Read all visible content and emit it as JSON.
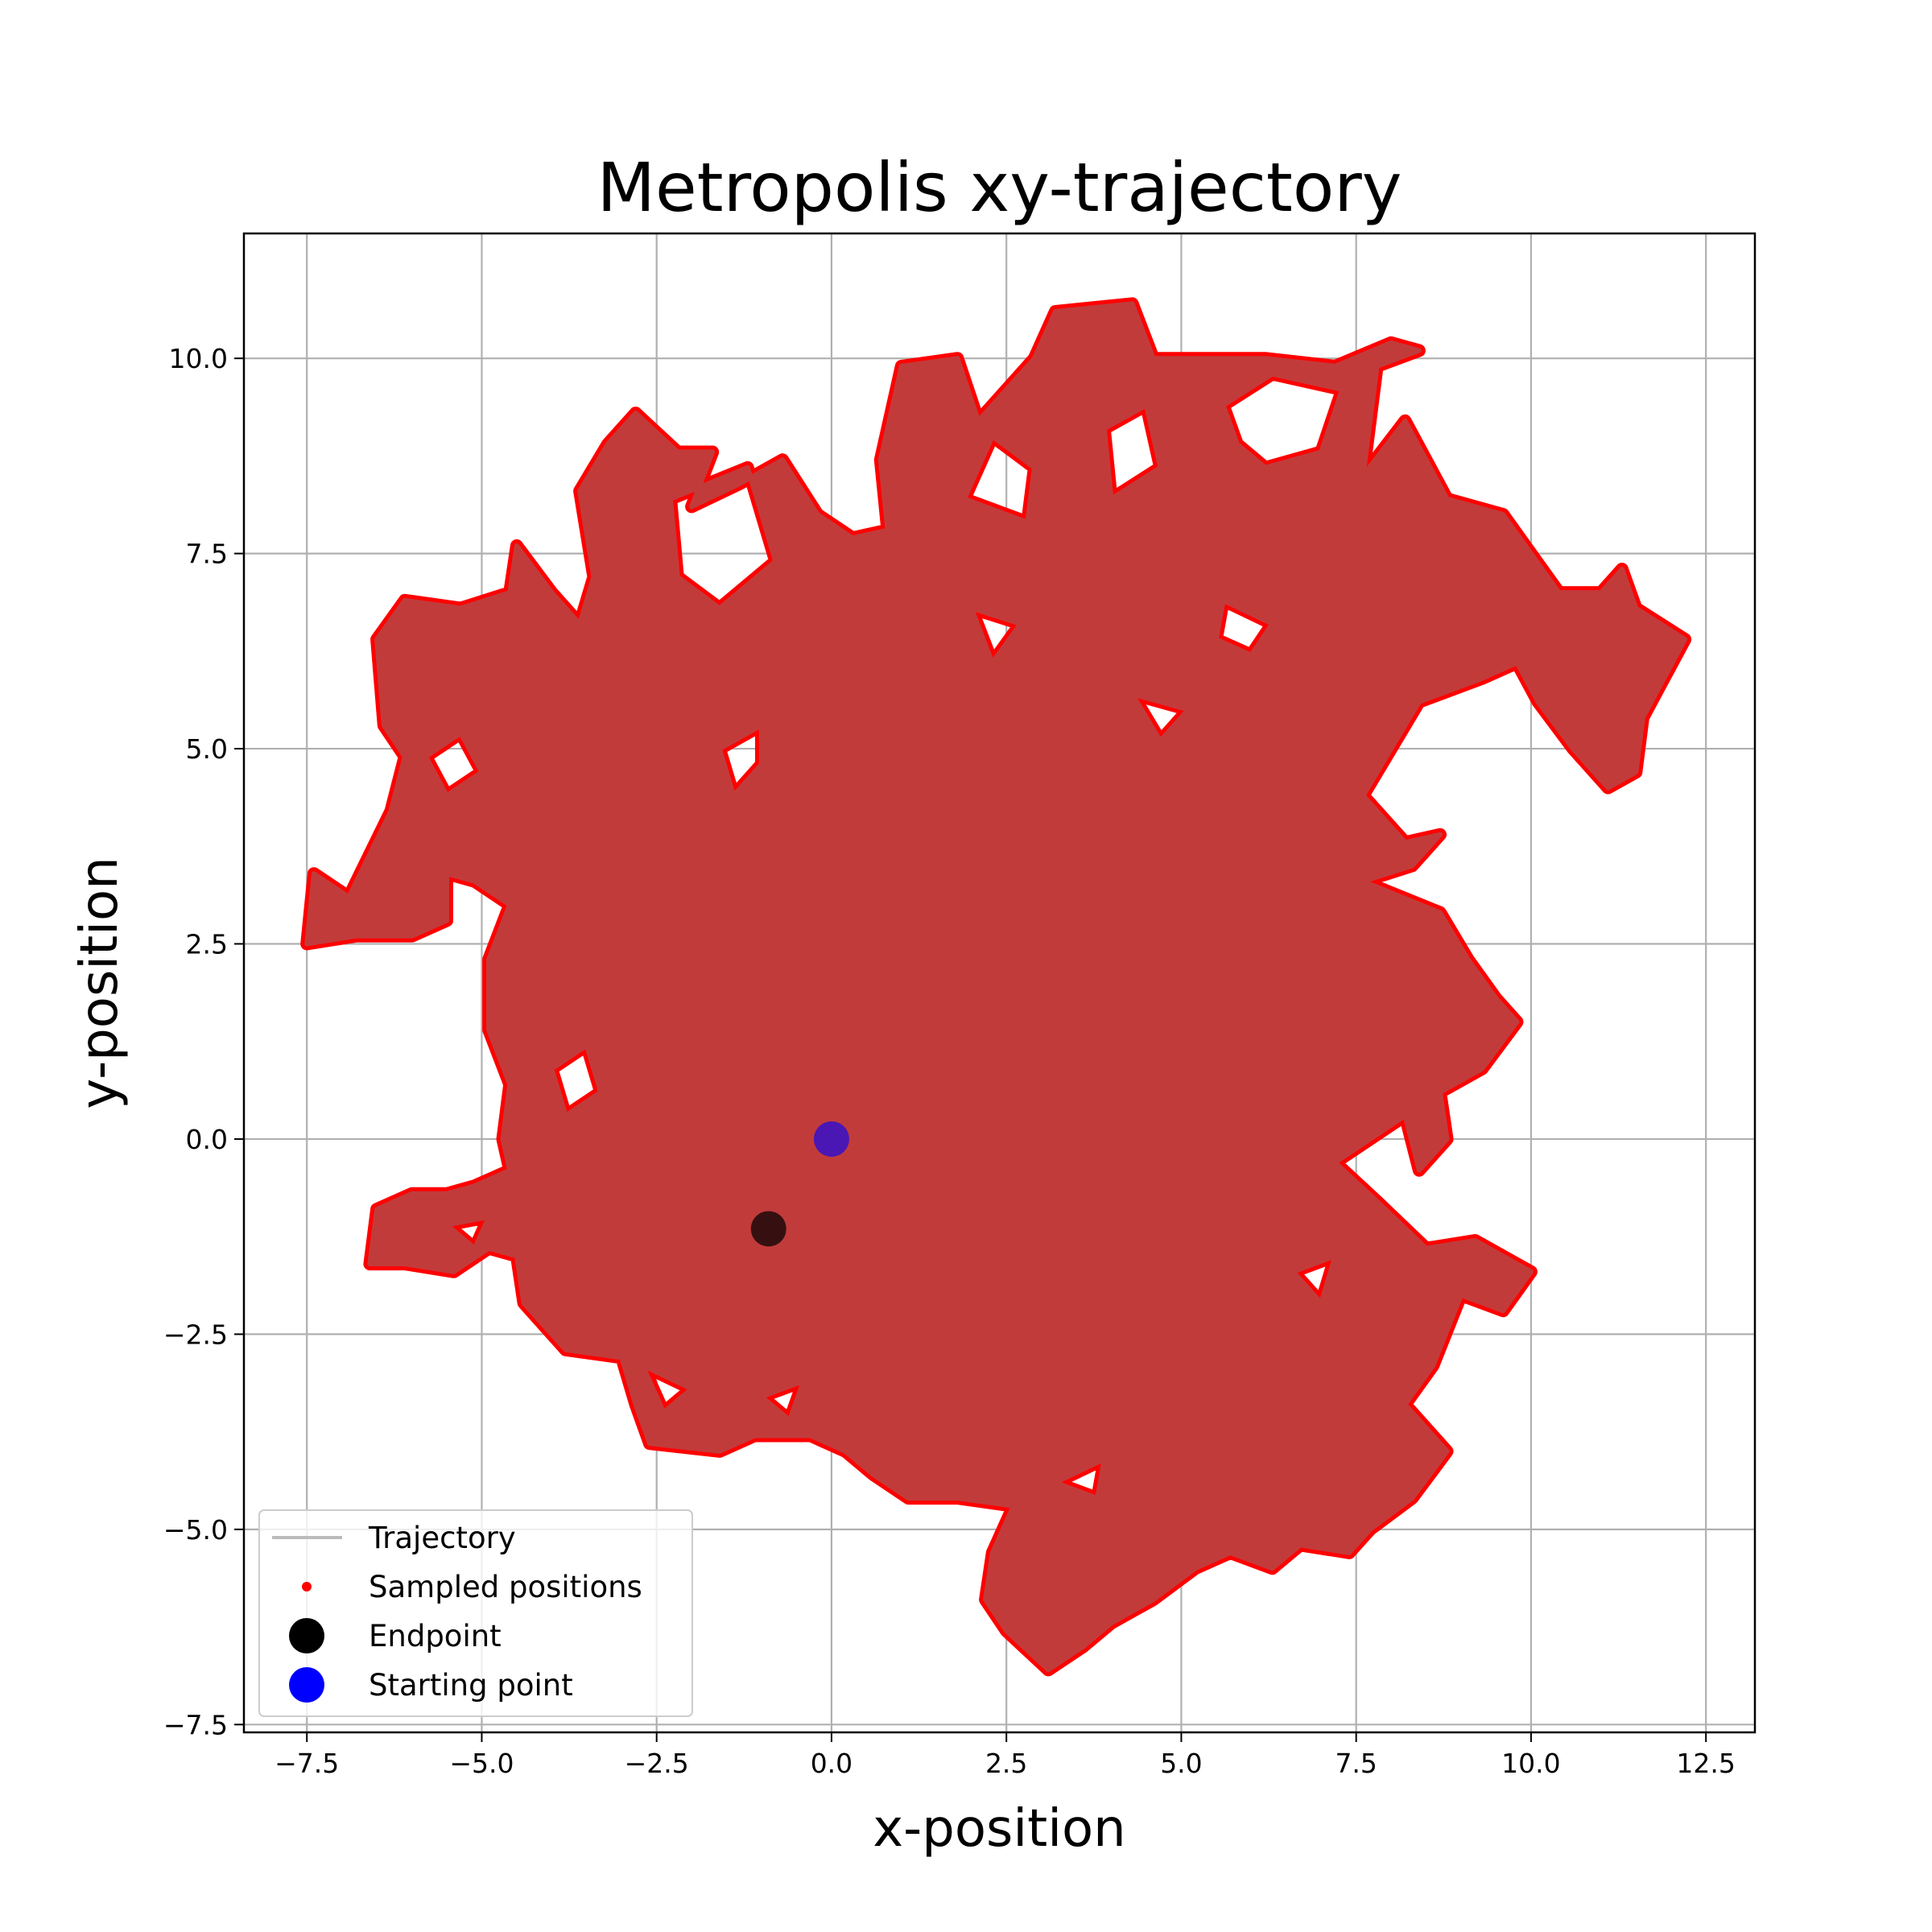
{
  "chart_data": {
    "type": "scatter",
    "title": "Metropolis xy-trajectory",
    "xlabel": "x-position",
    "ylabel": "y-position",
    "xlim": [
      -8.4,
      13.2
    ],
    "ylim": [
      -7.6,
      11.6
    ],
    "xticks": [
      -7.5,
      -5.0,
      -2.5,
      0.0,
      2.5,
      5.0,
      7.5,
      10.0,
      12.5
    ],
    "yticks": [
      -7.5,
      -5.0,
      -2.5,
      0.0,
      2.5,
      5.0,
      7.5,
      10.0
    ],
    "xtick_labels": [
      "−7.5",
      "−5.0",
      "−2.5",
      "0.0",
      "2.5",
      "5.0",
      "7.5",
      "10.0",
      "12.5"
    ],
    "ytick_labels": [
      "−7.5",
      "−5.0",
      "−2.5",
      "0.0",
      "2.5",
      "5.0",
      "7.5",
      "10.0"
    ],
    "grid": true,
    "legend_position": "lower-left",
    "colors": {
      "trajectory": "#bbbbbb",
      "samples": "#ff0000",
      "fill": "#c23b3b",
      "endpoint": "#000000",
      "start": "#0000ff",
      "grid": "#b0b0b0"
    },
    "series": [
      {
        "name": "Trajectory",
        "kind": "line",
        "outline": [
          [
            -7.5,
            2.5
          ],
          [
            -7.4,
            3.4
          ],
          [
            -6.9,
            3.1
          ],
          [
            -6.3,
            4.2
          ],
          [
            -6.1,
            4.9
          ],
          [
            -6.4,
            5.3
          ],
          [
            -6.5,
            6.4
          ],
          [
            -6.1,
            6.9
          ],
          [
            -5.3,
            6.8
          ],
          [
            -4.6,
            7.0
          ],
          [
            -4.5,
            7.6
          ],
          [
            -4.0,
            7.0
          ],
          [
            -3.6,
            6.6
          ],
          [
            -3.4,
            7.2
          ],
          [
            -3.6,
            8.3
          ],
          [
            -3.2,
            8.9
          ],
          [
            -2.8,
            9.3
          ],
          [
            -2.2,
            8.8
          ],
          [
            -1.7,
            8.8
          ],
          [
            -2.0,
            8.1
          ],
          [
            -1.3,
            8.4
          ],
          [
            -0.7,
            8.7
          ],
          [
            -0.2,
            8.0
          ],
          [
            0.3,
            7.7
          ],
          [
            0.8,
            7.8
          ],
          [
            0.7,
            8.7
          ],
          [
            1.0,
            9.9
          ],
          [
            1.8,
            10.0
          ],
          [
            2.1,
            9.2
          ],
          [
            2.9,
            10.0
          ],
          [
            3.2,
            10.6
          ],
          [
            4.3,
            10.7
          ],
          [
            4.6,
            10.0
          ],
          [
            5.3,
            10.0
          ],
          [
            6.2,
            10.0
          ],
          [
            7.2,
            9.9
          ],
          [
            8.0,
            10.2
          ],
          [
            8.4,
            10.1
          ],
          [
            7.8,
            9.9
          ],
          [
            7.6,
            8.5
          ],
          [
            8.2,
            9.2
          ],
          [
            8.8,
            8.2
          ],
          [
            9.6,
            8.0
          ],
          [
            10.0,
            7.5
          ],
          [
            10.4,
            7.0
          ],
          [
            11.0,
            7.0
          ],
          [
            11.3,
            7.3
          ],
          [
            11.5,
            6.8
          ],
          [
            12.2,
            6.4
          ],
          [
            11.9,
            5.9
          ],
          [
            11.6,
            5.4
          ],
          [
            11.5,
            4.7
          ],
          [
            11.1,
            4.5
          ],
          [
            10.6,
            5.0
          ],
          [
            10.1,
            5.6
          ],
          [
            9.8,
            6.1
          ],
          [
            9.3,
            5.9
          ],
          [
            8.4,
            5.6
          ],
          [
            8.0,
            5.0
          ],
          [
            7.6,
            4.4
          ],
          [
            8.2,
            3.8
          ],
          [
            8.7,
            3.9
          ],
          [
            8.3,
            3.5
          ],
          [
            7.6,
            3.3
          ],
          [
            8.7,
            2.9
          ],
          [
            9.1,
            2.3
          ],
          [
            9.5,
            1.8
          ],
          [
            9.8,
            1.5
          ],
          [
            9.3,
            0.9
          ],
          [
            8.7,
            0.6
          ],
          [
            8.8,
            0.0
          ],
          [
            8.4,
            -0.4
          ],
          [
            8.2,
            0.3
          ],
          [
            7.7,
            0.0
          ],
          [
            7.2,
            -0.3
          ],
          [
            7.8,
            -0.8
          ],
          [
            8.5,
            -1.4
          ],
          [
            9.2,
            -1.3
          ],
          [
            10.0,
            -1.7
          ],
          [
            9.6,
            -2.2
          ],
          [
            9.0,
            -2.0
          ],
          [
            8.6,
            -2.9
          ],
          [
            8.2,
            -3.4
          ],
          [
            8.8,
            -4.0
          ],
          [
            8.3,
            -4.6
          ],
          [
            7.7,
            -5.0
          ],
          [
            7.4,
            -5.3
          ],
          [
            6.7,
            -5.2
          ],
          [
            6.3,
            -5.5
          ],
          [
            5.7,
            -5.3
          ],
          [
            5.2,
            -5.5
          ],
          [
            4.6,
            -5.9
          ],
          [
            4.0,
            -6.2
          ],
          [
            3.6,
            -6.5
          ],
          [
            3.1,
            -6.8
          ],
          [
            2.5,
            -6.3
          ],
          [
            2.2,
            -5.9
          ],
          [
            2.3,
            -5.3
          ],
          [
            2.6,
            -4.7
          ],
          [
            1.8,
            -4.6
          ],
          [
            1.1,
            -4.6
          ],
          [
            0.6,
            -4.3
          ],
          [
            0.2,
            -4.0
          ],
          [
            -0.3,
            -3.8
          ],
          [
            -1.1,
            -3.8
          ],
          [
            -1.6,
            -4.0
          ],
          [
            -2.6,
            -3.9
          ],
          [
            -2.8,
            -3.4
          ],
          [
            -3.0,
            -2.8
          ],
          [
            -3.8,
            -2.7
          ],
          [
            -4.4,
            -2.1
          ],
          [
            -4.5,
            -1.5
          ],
          [
            -4.9,
            -1.4
          ],
          [
            -5.4,
            -1.7
          ],
          [
            -6.1,
            -1.6
          ],
          [
            -6.6,
            -1.6
          ],
          [
            -6.5,
            -0.9
          ],
          [
            -6.0,
            -0.7
          ],
          [
            -5.5,
            -0.7
          ],
          [
            -5.1,
            -0.6
          ],
          [
            -4.6,
            -0.4
          ],
          [
            -4.7,
            0.0
          ],
          [
            -4.6,
            0.7
          ],
          [
            -4.9,
            1.4
          ],
          [
            -4.9,
            2.3
          ],
          [
            -4.6,
            3.0
          ],
          [
            -5.1,
            3.3
          ],
          [
            -5.5,
            3.4
          ],
          [
            -5.5,
            2.8
          ],
          [
            -6.0,
            2.6
          ],
          [
            -6.8,
            2.6
          ]
        ]
      },
      {
        "name": "Sampled positions",
        "kind": "scatter",
        "note": "dense samples along the trajectory envelope"
      },
      {
        "name": "Endpoint",
        "kind": "marker",
        "points": [
          [
            -0.9,
            -1.15
          ]
        ]
      },
      {
        "name": "Starting point",
        "kind": "marker",
        "points": [
          [
            0.0,
            0.0
          ]
        ]
      }
    ],
    "holes": [
      [
        [
          -2.3,
          8.2
        ],
        [
          -1.2,
          8.6
        ],
        [
          -0.8,
          7.4
        ],
        [
          -1.6,
          6.8
        ],
        [
          -2.2,
          7.2
        ]
      ],
      [
        [
          2.3,
          9.0
        ],
        [
          1.9,
          8.2
        ],
        [
          2.8,
          7.9
        ],
        [
          2.9,
          8.6
        ]
      ],
      [
        [
          3.9,
          9.1
        ],
        [
          4.5,
          9.4
        ],
        [
          4.7,
          8.6
        ],
        [
          4.0,
          8.2
        ]
      ],
      [
        [
          5.6,
          9.4
        ],
        [
          6.3,
          9.8
        ],
        [
          7.3,
          9.6
        ],
        [
          7.0,
          8.8
        ],
        [
          6.2,
          8.6
        ],
        [
          5.8,
          8.9
        ]
      ],
      [
        [
          2.0,
          6.8
        ],
        [
          2.7,
          6.6
        ],
        [
          2.3,
          6.1
        ]
      ],
      [
        [
          4.3,
          5.7
        ],
        [
          5.1,
          5.5
        ],
        [
          4.7,
          5.1
        ]
      ],
      [
        [
          5.6,
          6.9
        ],
        [
          6.3,
          6.6
        ],
        [
          6.0,
          6.2
        ],
        [
          5.5,
          6.4
        ]
      ],
      [
        [
          -1.6,
          5.0
        ],
        [
          -1.0,
          5.3
        ],
        [
          -1.0,
          4.8
        ],
        [
          -1.4,
          4.4
        ]
      ],
      [
        [
          -5.8,
          4.9
        ],
        [
          -5.3,
          5.2
        ],
        [
          -5.0,
          4.7
        ],
        [
          -5.5,
          4.4
        ]
      ],
      [
        [
          -4.0,
          0.9
        ],
        [
          -3.5,
          1.2
        ],
        [
          -3.3,
          0.6
        ],
        [
          -3.8,
          0.3
        ]
      ],
      [
        [
          -2.7,
          -2.9
        ],
        [
          -2.0,
          -3.2
        ],
        [
          -2.4,
          -3.5
        ]
      ],
      [
        [
          -1.0,
          -3.3
        ],
        [
          -0.4,
          -3.1
        ],
        [
          -0.6,
          -3.6
        ]
      ],
      [
        [
          3.2,
          -4.4
        ],
        [
          3.9,
          -4.1
        ],
        [
          3.8,
          -4.6
        ]
      ],
      [
        [
          6.6,
          -1.7
        ],
        [
          7.2,
          -1.5
        ],
        [
          7.0,
          -2.1
        ]
      ],
      [
        [
          -5.5,
          -1.1
        ],
        [
          -4.9,
          -1.0
        ],
        [
          -5.1,
          -1.4
        ]
      ]
    ]
  },
  "legend": {
    "items": [
      {
        "label": "Trajectory",
        "kind": "line"
      },
      {
        "label": "Sampled positions",
        "kind": "dot"
      },
      {
        "label": "Endpoint",
        "kind": "circle"
      },
      {
        "label": "Starting point",
        "kind": "circle"
      }
    ]
  }
}
